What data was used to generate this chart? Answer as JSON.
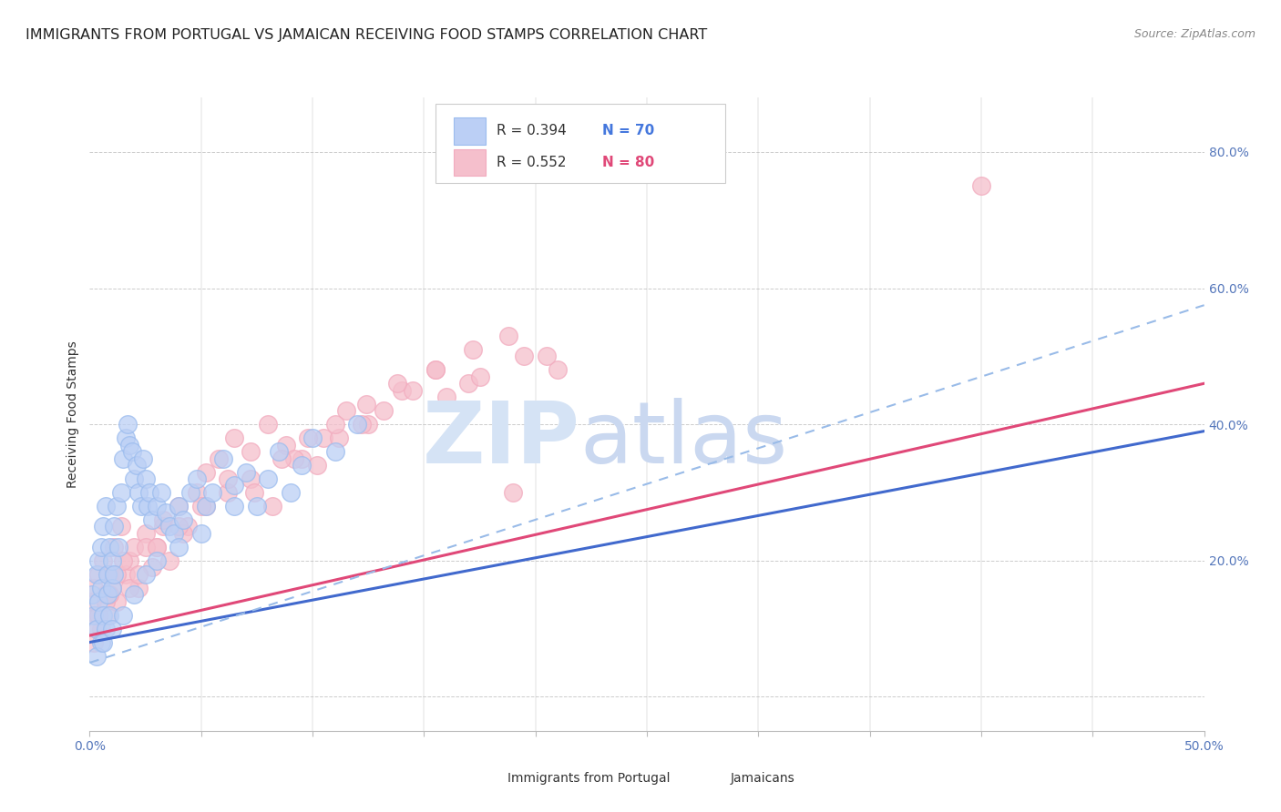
{
  "title": "IMMIGRANTS FROM PORTUGAL VS JAMAICAN RECEIVING FOOD STAMPS CORRELATION CHART",
  "source": "Source: ZipAtlas.com",
  "ylabel": "Receiving Food Stamps",
  "xlim": [
    0.0,
    0.5
  ],
  "ylim": [
    -0.05,
    0.88
  ],
  "xticks_major": [
    0.0,
    0.5
  ],
  "xticks_minor": [
    0.05,
    0.1,
    0.15,
    0.2,
    0.25,
    0.3,
    0.35,
    0.4,
    0.45
  ],
  "yticks": [
    0.0,
    0.2,
    0.4,
    0.6,
    0.8
  ],
  "xticklabels_major": [
    "0.0%",
    "50.0%"
  ],
  "right_yticklabels": [
    "20.0%",
    "40.0%",
    "60.0%",
    "80.0%"
  ],
  "right_yticks": [
    0.2,
    0.4,
    0.6,
    0.8
  ],
  "blue_color": "#9BBCEE",
  "pink_color": "#F2ABBE",
  "blue_scatter_fill": "#BBCFF5",
  "pink_scatter_fill": "#F5BFCC",
  "trend_blue_color": "#4169CD",
  "trend_pink_color": "#E04878",
  "dashed_blue_color": "#99BBE8",
  "watermark_zip_color": "#C8D8EE",
  "watermark_atlas_color": "#C0D0EC",
  "background_color": "#FFFFFF",
  "grid_color": "#CCCCCC",
  "title_fontsize": 11.5,
  "source_fontsize": 9,
  "axis_label_fontsize": 10,
  "tick_fontsize": 10,
  "blue_trend_slope": 0.62,
  "blue_trend_intercept": 0.08,
  "pink_trend_slope": 0.74,
  "pink_trend_intercept": 0.09,
  "blue_dashed_slope": 1.05,
  "blue_dashed_intercept": 0.05,
  "blue_points_x": [
    0.001,
    0.002,
    0.003,
    0.003,
    0.004,
    0.004,
    0.005,
    0.005,
    0.005,
    0.006,
    0.006,
    0.007,
    0.007,
    0.008,
    0.008,
    0.009,
    0.009,
    0.01,
    0.01,
    0.011,
    0.011,
    0.012,
    0.013,
    0.014,
    0.015,
    0.016,
    0.017,
    0.018,
    0.019,
    0.02,
    0.021,
    0.022,
    0.023,
    0.024,
    0.025,
    0.026,
    0.027,
    0.028,
    0.03,
    0.032,
    0.034,
    0.036,
    0.038,
    0.04,
    0.042,
    0.045,
    0.048,
    0.052,
    0.055,
    0.06,
    0.065,
    0.07,
    0.075,
    0.08,
    0.085,
    0.09,
    0.095,
    0.1,
    0.11,
    0.12,
    0.003,
    0.006,
    0.01,
    0.015,
    0.02,
    0.025,
    0.03,
    0.04,
    0.05,
    0.065
  ],
  "blue_points_y": [
    0.15,
    0.12,
    0.18,
    0.1,
    0.14,
    0.2,
    0.08,
    0.16,
    0.22,
    0.12,
    0.25,
    0.1,
    0.28,
    0.15,
    0.18,
    0.12,
    0.22,
    0.16,
    0.2,
    0.25,
    0.18,
    0.28,
    0.22,
    0.3,
    0.35,
    0.38,
    0.4,
    0.37,
    0.36,
    0.32,
    0.34,
    0.3,
    0.28,
    0.35,
    0.32,
    0.28,
    0.3,
    0.26,
    0.28,
    0.3,
    0.27,
    0.25,
    0.24,
    0.28,
    0.26,
    0.3,
    0.32,
    0.28,
    0.3,
    0.35,
    0.31,
    0.33,
    0.28,
    0.32,
    0.36,
    0.3,
    0.34,
    0.38,
    0.36,
    0.4,
    0.06,
    0.08,
    0.1,
    0.12,
    0.15,
    0.18,
    0.2,
    0.22,
    0.24,
    0.28
  ],
  "pink_points_x": [
    0.001,
    0.002,
    0.003,
    0.004,
    0.005,
    0.006,
    0.007,
    0.008,
    0.009,
    0.01,
    0.011,
    0.012,
    0.014,
    0.016,
    0.018,
    0.02,
    0.022,
    0.025,
    0.028,
    0.03,
    0.033,
    0.036,
    0.04,
    0.044,
    0.048,
    0.052,
    0.058,
    0.065,
    0.072,
    0.08,
    0.088,
    0.095,
    0.105,
    0.115,
    0.125,
    0.14,
    0.155,
    0.17,
    0.19,
    0.21,
    0.003,
    0.007,
    0.012,
    0.018,
    0.025,
    0.033,
    0.042,
    0.052,
    0.062,
    0.072,
    0.082,
    0.092,
    0.102,
    0.112,
    0.122,
    0.132,
    0.145,
    0.16,
    0.175,
    0.195,
    0.004,
    0.009,
    0.015,
    0.022,
    0.03,
    0.04,
    0.05,
    0.062,
    0.074,
    0.086,
    0.098,
    0.11,
    0.124,
    0.138,
    0.155,
    0.172,
    0.188,
    0.205,
    0.4,
    0.002
  ],
  "pink_points_y": [
    0.14,
    0.16,
    0.12,
    0.18,
    0.1,
    0.2,
    0.15,
    0.12,
    0.18,
    0.16,
    0.22,
    0.14,
    0.25,
    0.18,
    0.2,
    0.22,
    0.16,
    0.24,
    0.19,
    0.22,
    0.25,
    0.2,
    0.28,
    0.25,
    0.3,
    0.33,
    0.35,
    0.38,
    0.36,
    0.4,
    0.37,
    0.35,
    0.38,
    0.42,
    0.4,
    0.45,
    0.48,
    0.46,
    0.3,
    0.48,
    0.1,
    0.14,
    0.18,
    0.16,
    0.22,
    0.26,
    0.24,
    0.28,
    0.3,
    0.32,
    0.28,
    0.35,
    0.34,
    0.38,
    0.4,
    0.42,
    0.45,
    0.44,
    0.47,
    0.5,
    0.12,
    0.15,
    0.2,
    0.18,
    0.22,
    0.25,
    0.28,
    0.32,
    0.3,
    0.35,
    0.38,
    0.4,
    0.43,
    0.46,
    0.48,
    0.51,
    0.53,
    0.5,
    0.75,
    0.08
  ]
}
